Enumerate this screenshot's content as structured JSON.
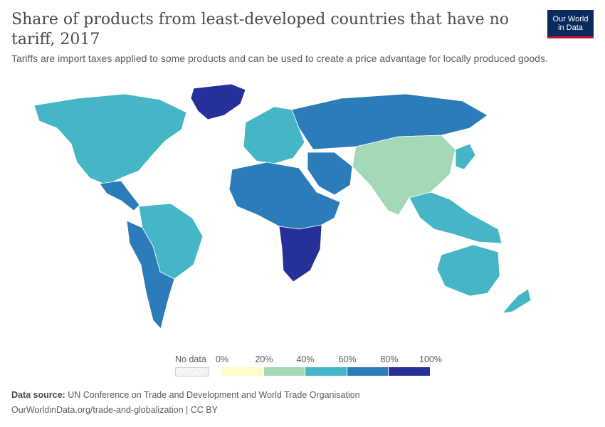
{
  "title": "Share of products from least-developed countries that have no tariff, 2017",
  "subtitle": "Tariffs are import taxes applied to some products and can be used to create a price advantage for locally produced goods.",
  "logo": {
    "line1": "Our World",
    "line2": "in Data"
  },
  "legend": {
    "no_data_label": "No data",
    "ticks": [
      "0%",
      "20%",
      "40%",
      "60%",
      "80%",
      "100%"
    ],
    "bins": [
      {
        "range": "0–20%",
        "color": "#fefcc8"
      },
      {
        "range": "20–40%",
        "color": "#a3d9b6"
      },
      {
        "range": "40–60%",
        "color": "#45b6c6"
      },
      {
        "range": "60–80%",
        "color": "#2b7cb9"
      },
      {
        "range": "80–100%",
        "color": "#26309a"
      }
    ],
    "no_data_color": "#ececec"
  },
  "regions": [
    {
      "name": "North America",
      "bin": 2
    },
    {
      "name": "Greenland",
      "bin": 4
    },
    {
      "name": "Central America & Caribbean",
      "bin": 3
    },
    {
      "name": "South America (north)",
      "bin": 2
    },
    {
      "name": "South America (west/south)",
      "bin": 3
    },
    {
      "name": "Europe",
      "bin": 2
    },
    {
      "name": "Russia",
      "bin": 3
    },
    {
      "name": "China & South Asia",
      "bin": 1
    },
    {
      "name": "Middle East",
      "bin": 3
    },
    {
      "name": "Africa (north/central)",
      "bin": 3
    },
    {
      "name": "Africa (south-east)",
      "bin": 4
    },
    {
      "name": "Southeast Asia",
      "bin": 2
    },
    {
      "name": "Japan & Korea",
      "bin": 2
    },
    {
      "name": "Australia & New Zealand",
      "bin": 2
    }
  ],
  "source": {
    "label": "Data source:",
    "text": "UN Conference on Trade and Development and World Trade Organisation"
  },
  "url_text": "OurWorldinData.org/trade-and-globalization | CC BY"
}
